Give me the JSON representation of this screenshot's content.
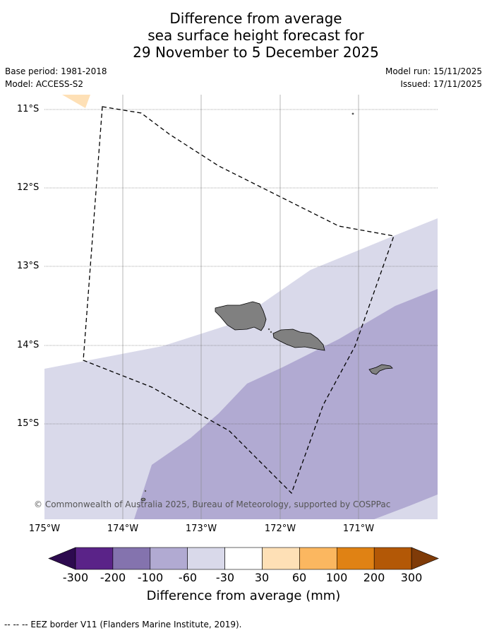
{
  "title": {
    "line1": "Difference from average",
    "line2": "sea surface height forecast for",
    "line3": "29 November to 5 December 2025"
  },
  "meta": {
    "base_period": "Base period: 1981-2018",
    "model": "Model: ACCESS-S2",
    "model_run": "Model run: 15/11/2025",
    "issued": "Issued: 17/11/2025"
  },
  "map": {
    "lat_labels": [
      "11°S",
      "12°S",
      "13°S",
      "14°S",
      "15°S"
    ],
    "lon_labels": [
      "175°W",
      "174°W",
      "173°W",
      "172°W",
      "171°W"
    ],
    "copyright": "© Commonwealth of Australia 2025, Bureau of Meteorology, supported by COSPPac"
  },
  "colorbar": {
    "title": "Difference from average (mm)",
    "ticks": [
      "-300",
      "-200",
      "-100",
      "-60",
      "-30",
      "30",
      "60",
      "100",
      "200",
      "300"
    ],
    "colors": [
      "#2d0a4f",
      "#5a2388",
      "#8473ae",
      "#b1aad2",
      "#d9d9ea",
      "#ffffff",
      "#fee0b6",
      "#fbb760",
      "#e08214",
      "#b35806",
      "#7f3b08"
    ]
  },
  "footnote": "--  --  -- EEZ border V11 (Flanders Marine Institute, 2019)."
}
